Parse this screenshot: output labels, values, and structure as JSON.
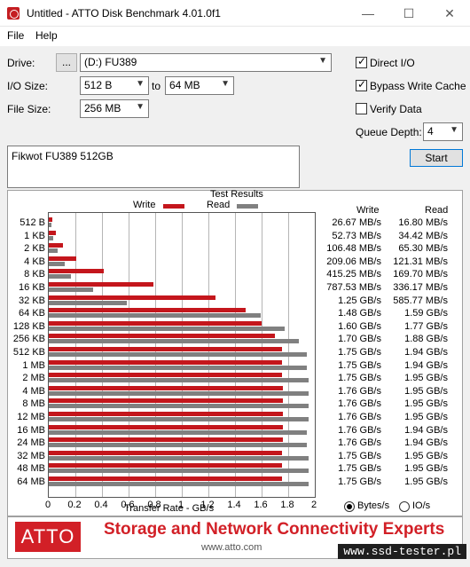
{
  "window": {
    "title": "Untitled - ATTO Disk Benchmark 4.01.0f1"
  },
  "menu": {
    "file": "File",
    "help": "Help"
  },
  "drive": {
    "label": "Drive:",
    "browse": "...",
    "value": "(D:) FU389"
  },
  "io_size": {
    "label": "I/O Size:",
    "from": "512 B",
    "to_label": "to",
    "to": "64 MB"
  },
  "file_size": {
    "label": "File Size:",
    "value": "256 MB"
  },
  "options": {
    "direct_io": {
      "label": "Direct I/O",
      "checked": true
    },
    "bypass_write_cache": {
      "label": "Bypass Write Cache",
      "checked": true
    },
    "verify_data": {
      "label": "Verify Data",
      "checked": false
    }
  },
  "queue_depth": {
    "label": "Queue Depth:",
    "value": "4"
  },
  "start_button": "Start",
  "description": "Fikwot FU389 512GB",
  "results": {
    "title": "Test Results",
    "legend_write": "Write",
    "legend_read": "Read",
    "col_write": "Write",
    "col_read": "Read",
    "xlabel": "Transfer Rate - GB/s",
    "xticks": [
      "0",
      "0.2",
      "0.4",
      "0.6",
      "0.8",
      "1",
      "1.2",
      "1.4",
      "1.6",
      "1.8",
      "2"
    ]
  },
  "units": {
    "bytes": "Bytes/s",
    "io": "IO/s",
    "selected": "bytes"
  },
  "colors": {
    "write": "#c4161c",
    "read": "#808080",
    "brand": "#d22027"
  },
  "chart_data": {
    "type": "bar",
    "orientation": "horizontal",
    "title": "Test Results",
    "xlabel": "Transfer Rate - GB/s",
    "xlim": [
      0,
      2
    ],
    "categories": [
      "512 B",
      "1 KB",
      "2 KB",
      "4 KB",
      "8 KB",
      "16 KB",
      "32 KB",
      "64 KB",
      "128 KB",
      "256 KB",
      "512 KB",
      "1 MB",
      "2 MB",
      "4 MB",
      "8 MB",
      "12 MB",
      "16 MB",
      "24 MB",
      "32 MB",
      "48 MB",
      "64 MB"
    ],
    "series": [
      {
        "name": "Write",
        "values": [
          0.02667,
          0.05273,
          0.10648,
          0.20906,
          0.41525,
          0.78753,
          1.25,
          1.48,
          1.6,
          1.7,
          1.75,
          1.75,
          1.75,
          1.76,
          1.76,
          1.76,
          1.76,
          1.76,
          1.75,
          1.75,
          1.75
        ],
        "labels": [
          "26.67 MB/s",
          "52.73 MB/s",
          "106.48 MB/s",
          "209.06 MB/s",
          "415.25 MB/s",
          "787.53 MB/s",
          "1.25 GB/s",
          "1.48 GB/s",
          "1.60 GB/s",
          "1.70 GB/s",
          "1.75 GB/s",
          "1.75 GB/s",
          "1.75 GB/s",
          "1.76 GB/s",
          "1.76 GB/s",
          "1.76 GB/s",
          "1.76 GB/s",
          "1.76 GB/s",
          "1.75 GB/s",
          "1.75 GB/s",
          "1.75 GB/s"
        ]
      },
      {
        "name": "Read",
        "values": [
          0.0168,
          0.03442,
          0.0653,
          0.12131,
          0.1697,
          0.33617,
          0.58577,
          1.59,
          1.77,
          1.88,
          1.94,
          1.94,
          1.95,
          1.95,
          1.95,
          1.95,
          1.94,
          1.94,
          1.95,
          1.95,
          1.95
        ],
        "labels": [
          "16.80 MB/s",
          "34.42 MB/s",
          "65.30 MB/s",
          "121.31 MB/s",
          "169.70 MB/s",
          "336.17 MB/s",
          "585.77 MB/s",
          "1.59 GB/s",
          "1.77 GB/s",
          "1.88 GB/s",
          "1.94 GB/s",
          "1.94 GB/s",
          "1.95 GB/s",
          "1.95 GB/s",
          "1.95 GB/s",
          "1.95 GB/s",
          "1.94 GB/s",
          "1.94 GB/s",
          "1.95 GB/s",
          "1.95 GB/s",
          "1.95 GB/s"
        ]
      }
    ]
  },
  "banner": {
    "logo": "ATTO",
    "tagline": "Storage and Network Connectivity Experts",
    "url": "www.atto.com"
  },
  "watermark": "www.ssd-tester.pl"
}
